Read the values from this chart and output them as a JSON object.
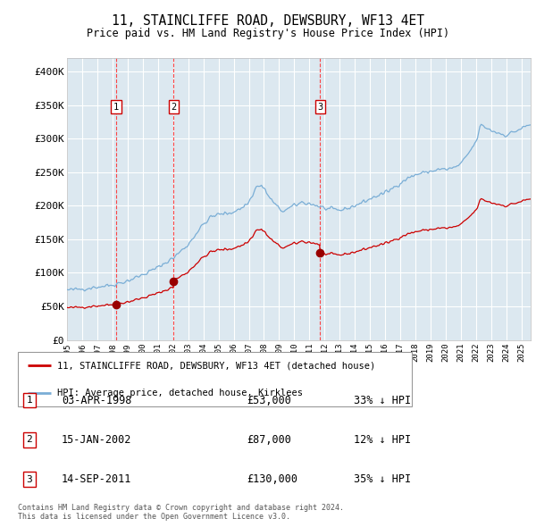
{
  "title1": "11, STAINCLIFFE ROAD, DEWSBURY, WF13 4ET",
  "title2": "Price paid vs. HM Land Registry's House Price Index (HPI)",
  "background_color": "#ffffff",
  "plot_bg_color": "#dce8f0",
  "grid_color": "#ffffff",
  "hpi_color": "#7aaed6",
  "price_color": "#cc0000",
  "vline_color": "#ff3333",
  "sale_marker_color": "#990000",
  "transactions": [
    {
      "date_x": 1998.25,
      "price": 53000,
      "label": "1",
      "date_str": "03-APR-1998",
      "hpi_pct": "33% ↓ HPI"
    },
    {
      "date_x": 2002.04,
      "price": 87000,
      "label": "2",
      "date_str": "15-JAN-2002",
      "hpi_pct": "12% ↓ HPI"
    },
    {
      "date_x": 2011.71,
      "price": 130000,
      "label": "3",
      "date_str": "14-SEP-2011",
      "hpi_pct": "35% ↓ HPI"
    }
  ],
  "ylim": [
    0,
    420000
  ],
  "xlim_start": 1995.0,
  "xlim_end": 2025.6,
  "yticks": [
    0,
    50000,
    100000,
    150000,
    200000,
    250000,
    300000,
    350000,
    400000
  ],
  "ytick_labels": [
    "£0",
    "£50K",
    "£100K",
    "£150K",
    "£200K",
    "£250K",
    "£300K",
    "£350K",
    "£400K"
  ],
  "legend_label_red": "11, STAINCLIFFE ROAD, DEWSBURY, WF13 4ET (detached house)",
  "legend_label_blue": "HPI: Average price, detached house, Kirklees",
  "footer": "Contains HM Land Registry data © Crown copyright and database right 2024.\nThis data is licensed under the Open Government Licence v3.0."
}
